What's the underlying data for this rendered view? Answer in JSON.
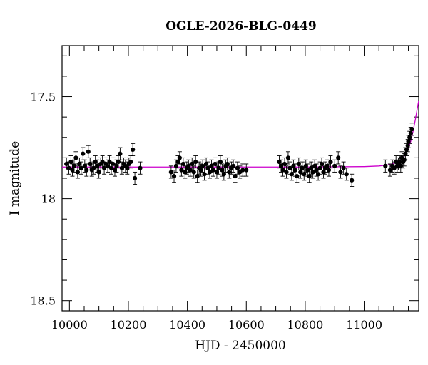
{
  "chart_data": {
    "type": "scatter",
    "title": "OGLE-2026-BLG-0449",
    "xlabel": "HJD - 2450000",
    "ylabel": "I magnitude",
    "xlim": [
      9975,
      11185
    ],
    "ylim": [
      18.55,
      17.25
    ],
    "y_inverted": true,
    "x_ticks": [
      10000,
      10200,
      10400,
      10600,
      10800,
      11000
    ],
    "x_tick_labels": [
      "10000",
      "10200",
      "10400",
      "10600",
      "10800",
      "11000"
    ],
    "y_ticks": [
      17.5,
      18,
      18.5
    ],
    "y_tick_labels": [
      "17.5",
      "18",
      "18.5"
    ],
    "grid": false,
    "colors": {
      "points": "#000000",
      "model": "#cc00cc",
      "axes": "#000000"
    },
    "series": [
      {
        "type": "scatter-errorbars",
        "points": [
          [
            9990,
            17.83,
            0.03
          ],
          [
            9998,
            17.85,
            0.03
          ],
          [
            10005,
            17.82,
            0.03
          ],
          [
            10010,
            17.86,
            0.03
          ],
          [
            10016,
            17.84,
            0.03
          ],
          [
            10022,
            17.8,
            0.03
          ],
          [
            10028,
            17.87,
            0.03
          ],
          [
            10034,
            17.83,
            0.03
          ],
          [
            10040,
            17.85,
            0.03
          ],
          [
            10046,
            17.78,
            0.03
          ],
          [
            10052,
            17.84,
            0.03
          ],
          [
            10058,
            17.86,
            0.03
          ],
          [
            10064,
            17.77,
            0.03
          ],
          [
            10070,
            17.83,
            0.03
          ],
          [
            10076,
            17.86,
            0.03
          ],
          [
            10082,
            17.85,
            0.03
          ],
          [
            10088,
            17.82,
            0.03
          ],
          [
            10094,
            17.84,
            0.03
          ],
          [
            10100,
            17.87,
            0.03
          ],
          [
            10106,
            17.83,
            0.03
          ],
          [
            10112,
            17.82,
            0.03
          ],
          [
            10118,
            17.85,
            0.03
          ],
          [
            10124,
            17.83,
            0.03
          ],
          [
            10130,
            17.84,
            0.03
          ],
          [
            10136,
            17.82,
            0.03
          ],
          [
            10142,
            17.85,
            0.03
          ],
          [
            10148,
            17.83,
            0.03
          ],
          [
            10154,
            17.86,
            0.03
          ],
          [
            10160,
            17.84,
            0.03
          ],
          [
            10166,
            17.82,
            0.03
          ],
          [
            10172,
            17.78,
            0.03
          ],
          [
            10178,
            17.85,
            0.03
          ],
          [
            10184,
            17.83,
            0.03
          ],
          [
            10190,
            17.84,
            0.03
          ],
          [
            10196,
            17.85,
            0.03
          ],
          [
            10202,
            17.83,
            0.03
          ],
          [
            10208,
            17.82,
            0.03
          ],
          [
            10215,
            17.76,
            0.03
          ],
          [
            10222,
            17.9,
            0.03
          ],
          [
            10240,
            17.85,
            0.03
          ],
          [
            10345,
            17.87,
            0.03
          ],
          [
            10355,
            17.89,
            0.03
          ],
          [
            10362,
            17.84,
            0.03
          ],
          [
            10368,
            17.82,
            0.03
          ],
          [
            10374,
            17.8,
            0.03
          ],
          [
            10380,
            17.86,
            0.03
          ],
          [
            10386,
            17.83,
            0.03
          ],
          [
            10392,
            17.87,
            0.03
          ],
          [
            10398,
            17.85,
            0.03
          ],
          [
            10404,
            17.84,
            0.03
          ],
          [
            10410,
            17.86,
            0.03
          ],
          [
            10416,
            17.83,
            0.03
          ],
          [
            10422,
            17.87,
            0.03
          ],
          [
            10428,
            17.82,
            0.03
          ],
          [
            10434,
            17.89,
            0.03
          ],
          [
            10440,
            17.85,
            0.03
          ],
          [
            10446,
            17.86,
            0.03
          ],
          [
            10452,
            17.84,
            0.03
          ],
          [
            10458,
            17.88,
            0.03
          ],
          [
            10464,
            17.83,
            0.03
          ],
          [
            10470,
            17.85,
            0.03
          ],
          [
            10476,
            17.87,
            0.03
          ],
          [
            10482,
            17.84,
            0.03
          ],
          [
            10488,
            17.86,
            0.03
          ],
          [
            10494,
            17.83,
            0.03
          ],
          [
            10500,
            17.87,
            0.03
          ],
          [
            10506,
            17.85,
            0.03
          ],
          [
            10512,
            17.82,
            0.03
          ],
          [
            10518,
            17.86,
            0.03
          ],
          [
            10524,
            17.88,
            0.03
          ],
          [
            10530,
            17.84,
            0.03
          ],
          [
            10536,
            17.83,
            0.03
          ],
          [
            10542,
            17.87,
            0.03
          ],
          [
            10550,
            17.85,
            0.03
          ],
          [
            10556,
            17.84,
            0.03
          ],
          [
            10562,
            17.89,
            0.03
          ],
          [
            10570,
            17.85,
            0.03
          ],
          [
            10578,
            17.87,
            0.03
          ],
          [
            10588,
            17.86,
            0.03
          ],
          [
            10600,
            17.86,
            0.03
          ],
          [
            10712,
            17.82,
            0.03
          ],
          [
            10718,
            17.84,
            0.03
          ],
          [
            10724,
            17.86,
            0.03
          ],
          [
            10730,
            17.83,
            0.03
          ],
          [
            10736,
            17.87,
            0.03
          ],
          [
            10742,
            17.8,
            0.03
          ],
          [
            10748,
            17.85,
            0.03
          ],
          [
            10754,
            17.88,
            0.03
          ],
          [
            10760,
            17.84,
            0.03
          ],
          [
            10766,
            17.86,
            0.03
          ],
          [
            10772,
            17.89,
            0.03
          ],
          [
            10778,
            17.83,
            0.03
          ],
          [
            10784,
            17.87,
            0.03
          ],
          [
            10790,
            17.85,
            0.03
          ],
          [
            10796,
            17.88,
            0.03
          ],
          [
            10802,
            17.84,
            0.03
          ],
          [
            10808,
            17.86,
            0.03
          ],
          [
            10814,
            17.89,
            0.03
          ],
          [
            10820,
            17.85,
            0.03
          ],
          [
            10826,
            17.87,
            0.03
          ],
          [
            10832,
            17.84,
            0.03
          ],
          [
            10838,
            17.86,
            0.03
          ],
          [
            10844,
            17.88,
            0.03
          ],
          [
            10850,
            17.85,
            0.03
          ],
          [
            10856,
            17.83,
            0.03
          ],
          [
            10862,
            17.87,
            0.03
          ],
          [
            10868,
            17.85,
            0.03
          ],
          [
            10874,
            17.84,
            0.03
          ],
          [
            10880,
            17.86,
            0.03
          ],
          [
            10886,
            17.82,
            0.03
          ],
          [
            10900,
            17.84,
            0.03
          ],
          [
            10912,
            17.8,
            0.03
          ],
          [
            10920,
            17.87,
            0.03
          ],
          [
            10930,
            17.85,
            0.03
          ],
          [
            10940,
            17.88,
            0.03
          ],
          [
            10958,
            17.91,
            0.03
          ],
          [
            11072,
            17.84,
            0.03
          ],
          [
            11088,
            17.86,
            0.03
          ],
          [
            11096,
            17.84,
            0.03
          ],
          [
            11102,
            17.85,
            0.03
          ],
          [
            11108,
            17.82,
            0.03
          ],
          [
            11112,
            17.84,
            0.03
          ],
          [
            11116,
            17.83,
            0.03
          ],
          [
            11120,
            17.82,
            0.03
          ],
          [
            11124,
            17.84,
            0.03
          ],
          [
            11128,
            17.8,
            0.03
          ],
          [
            11132,
            17.82,
            0.03
          ],
          [
            11136,
            17.81,
            0.03
          ],
          [
            11140,
            17.78,
            0.03
          ],
          [
            11144,
            17.76,
            0.03
          ],
          [
            11148,
            17.74,
            0.03
          ],
          [
            11150,
            17.72,
            0.03
          ],
          [
            11154,
            17.7,
            0.03
          ],
          [
            11158,
            17.68,
            0.03
          ],
          [
            11162,
            17.66,
            0.03
          ]
        ]
      },
      {
        "type": "line",
        "baseline": 17.845,
        "points": [
          [
            9975,
            17.845
          ],
          [
            10800,
            17.845
          ],
          [
            11000,
            17.843
          ],
          [
            11050,
            17.84
          ],
          [
            11080,
            17.835
          ],
          [
            11100,
            17.828
          ],
          [
            11120,
            17.815
          ],
          [
            11135,
            17.795
          ],
          [
            11148,
            17.76
          ],
          [
            11158,
            17.72
          ],
          [
            11166,
            17.67
          ],
          [
            11174,
            17.61
          ],
          [
            11180,
            17.56
          ],
          [
            11185,
            17.52
          ]
        ]
      }
    ]
  }
}
